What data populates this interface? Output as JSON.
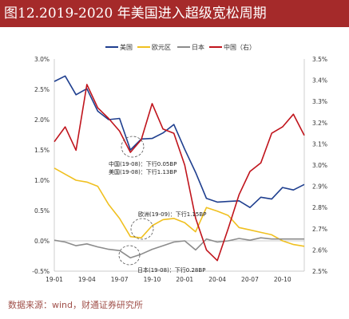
{
  "header": {
    "title": "图12.2019-2020 年美国进入超级宽松周期"
  },
  "source_note": "数据来源：wind，财通证券研究所",
  "colors": {
    "title_bg": "#a52a2a",
    "us": "#1f3f8f",
    "eurozone": "#f0c020",
    "japan": "#8c8c8c",
    "china": "#c0141c"
  },
  "chart_data": {
    "type": "line",
    "x": [
      "19-01",
      "19-02",
      "19-03",
      "19-04",
      "19-05",
      "19-06",
      "19-07",
      "19-08",
      "19-09",
      "19-10",
      "19-11",
      "19-12",
      "20-01",
      "20-02",
      "20-03",
      "20-04",
      "20-05",
      "20-06",
      "20-07",
      "20-08",
      "20-09",
      "20-10",
      "20-11",
      "20-12"
    ],
    "x_tick_labels": [
      "19-01",
      "19-04",
      "19-07",
      "19-10",
      "20-01",
      "20-04",
      "20-07",
      "20-10"
    ],
    "x_tick_positions": [
      0,
      3,
      6,
      9,
      12,
      15,
      18,
      21
    ],
    "left_axis": {
      "ylim": [
        -0.5,
        3.0
      ],
      "ticks": [
        "-0.5%",
        "0.0%",
        "0.5%",
        "1.0%",
        "1.5%",
        "2.0%",
        "2.5%",
        "3.0%"
      ]
    },
    "right_axis": {
      "ylim": [
        2.5,
        3.5
      ],
      "ticks": [
        "2.5%",
        "2.6%",
        "2.7%",
        "2.8%",
        "2.9%",
        "3.0%",
        "3.1%",
        "3.2%",
        "3.3%",
        "3.4%",
        "3.5%"
      ]
    },
    "legend_position": "top",
    "series": [
      {
        "name": "美国",
        "axis": "left",
        "color": "#1f3f8f",
        "values": [
          2.63,
          2.72,
          2.41,
          2.51,
          2.14,
          2.0,
          2.02,
          1.5,
          1.68,
          1.69,
          1.78,
          1.92,
          1.51,
          1.13,
          0.7,
          0.64,
          0.65,
          0.66,
          0.55,
          0.72,
          0.69,
          0.88,
          0.84,
          0.93
        ]
      },
      {
        "name": "欧元区",
        "axis": "left",
        "color": "#f0c020",
        "values": [
          1.2,
          1.1,
          1.0,
          0.97,
          0.9,
          0.6,
          0.37,
          0.07,
          0.05,
          0.25,
          0.35,
          0.37,
          0.3,
          0.15,
          0.55,
          0.49,
          0.42,
          0.22,
          0.18,
          0.14,
          0.1,
          0.0,
          -0.06,
          -0.09
        ]
      },
      {
        "name": "日本",
        "axis": "left",
        "color": "#8c8c8c",
        "values": [
          0.01,
          -0.02,
          -0.08,
          -0.05,
          -0.1,
          -0.14,
          -0.16,
          -0.28,
          -0.22,
          -0.14,
          -0.08,
          -0.02,
          0.0,
          -0.15,
          0.03,
          -0.02,
          0.0,
          0.04,
          0.01,
          0.05,
          0.03,
          0.03,
          0.03,
          0.03
        ]
      },
      {
        "name": "中国（右）",
        "axis": "right",
        "color": "#c0141c",
        "values": [
          3.11,
          3.18,
          3.07,
          3.38,
          3.27,
          3.22,
          3.16,
          3.06,
          3.12,
          3.29,
          3.17,
          3.15,
          3.0,
          2.75,
          2.6,
          2.55,
          2.7,
          2.86,
          2.97,
          3.01,
          3.15,
          3.18,
          3.24,
          3.14
        ]
      }
    ],
    "annotations": [
      {
        "lines": [
          "中国(19-08)：下行0.05BP",
          "美国(19-08)：下行1.13BP"
        ],
        "x_index": 7
      },
      {
        "lines": [
          "欧洲(19-09)：下行1.15BP"
        ],
        "x_index": 8
      },
      {
        "lines": [
          "日本(19-08)：下行0.28BP"
        ],
        "x_index": 7
      }
    ]
  }
}
